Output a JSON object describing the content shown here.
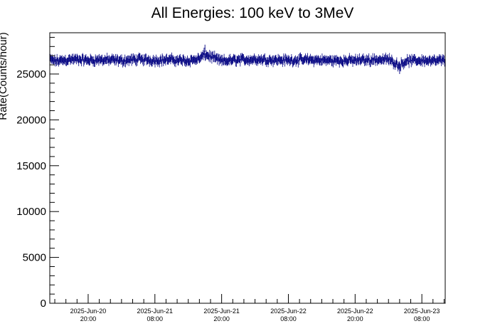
{
  "chart_data": {
    "type": "scatter",
    "title": "All Energies:  100 keV to 3MeV",
    "xlabel": "",
    "ylabel": "Rate(Counts/hour)",
    "ylim": [
      0,
      29500
    ],
    "yticks": [
      0,
      5000,
      10000,
      15000,
      20000,
      25000
    ],
    "yticks_labels": [
      "0",
      "5000",
      "10000",
      "15000",
      "20000",
      "25000"
    ],
    "xlim_hours": [
      -6.9,
      64.2
    ],
    "xticks_hours": [
      0,
      12,
      24,
      36,
      48,
      60
    ],
    "xticks_labels": [
      [
        "2025-Jun-20",
        "20:00"
      ],
      [
        "2025-Jun-21",
        "08:00"
      ],
      [
        "2025-Jun-21",
        "20:00"
      ],
      [
        "2025-Jun-22",
        "08:00"
      ],
      [
        "2025-Jun-22",
        "20:00"
      ],
      [
        "2025-Jun-23",
        "08:00"
      ]
    ],
    "series": [
      {
        "color": "#000080",
        "x_hours_range": [
          -6.9,
          64.2
        ],
        "samples": [
          [
            -6.0,
            26300
          ],
          [
            -3.0,
            26700
          ],
          [
            0.0,
            26500
          ],
          [
            3.0,
            26600
          ],
          [
            6.0,
            26400
          ],
          [
            9.0,
            26700
          ],
          [
            12.0,
            26500
          ],
          [
            15.0,
            26600
          ],
          [
            18.0,
            26400
          ],
          [
            20.0,
            26800
          ],
          [
            21.0,
            27800
          ],
          [
            24.0,
            26300
          ],
          [
            27.0,
            26600
          ],
          [
            30.0,
            26700
          ],
          [
            33.0,
            26600
          ],
          [
            36.0,
            26500
          ],
          [
            39.0,
            26600
          ],
          [
            42.0,
            26500
          ],
          [
            45.0,
            26400
          ],
          [
            48.0,
            26500
          ],
          [
            51.0,
            26600
          ],
          [
            54.0,
            26700
          ],
          [
            56.0,
            25400
          ],
          [
            57.0,
            26300
          ],
          [
            60.0,
            26500
          ],
          [
            63.0,
            26300
          ]
        ],
        "mean": 26500,
        "noise_amplitude": 450,
        "error_bar_half_height": 400,
        "n_points": 710
      }
    ]
  }
}
